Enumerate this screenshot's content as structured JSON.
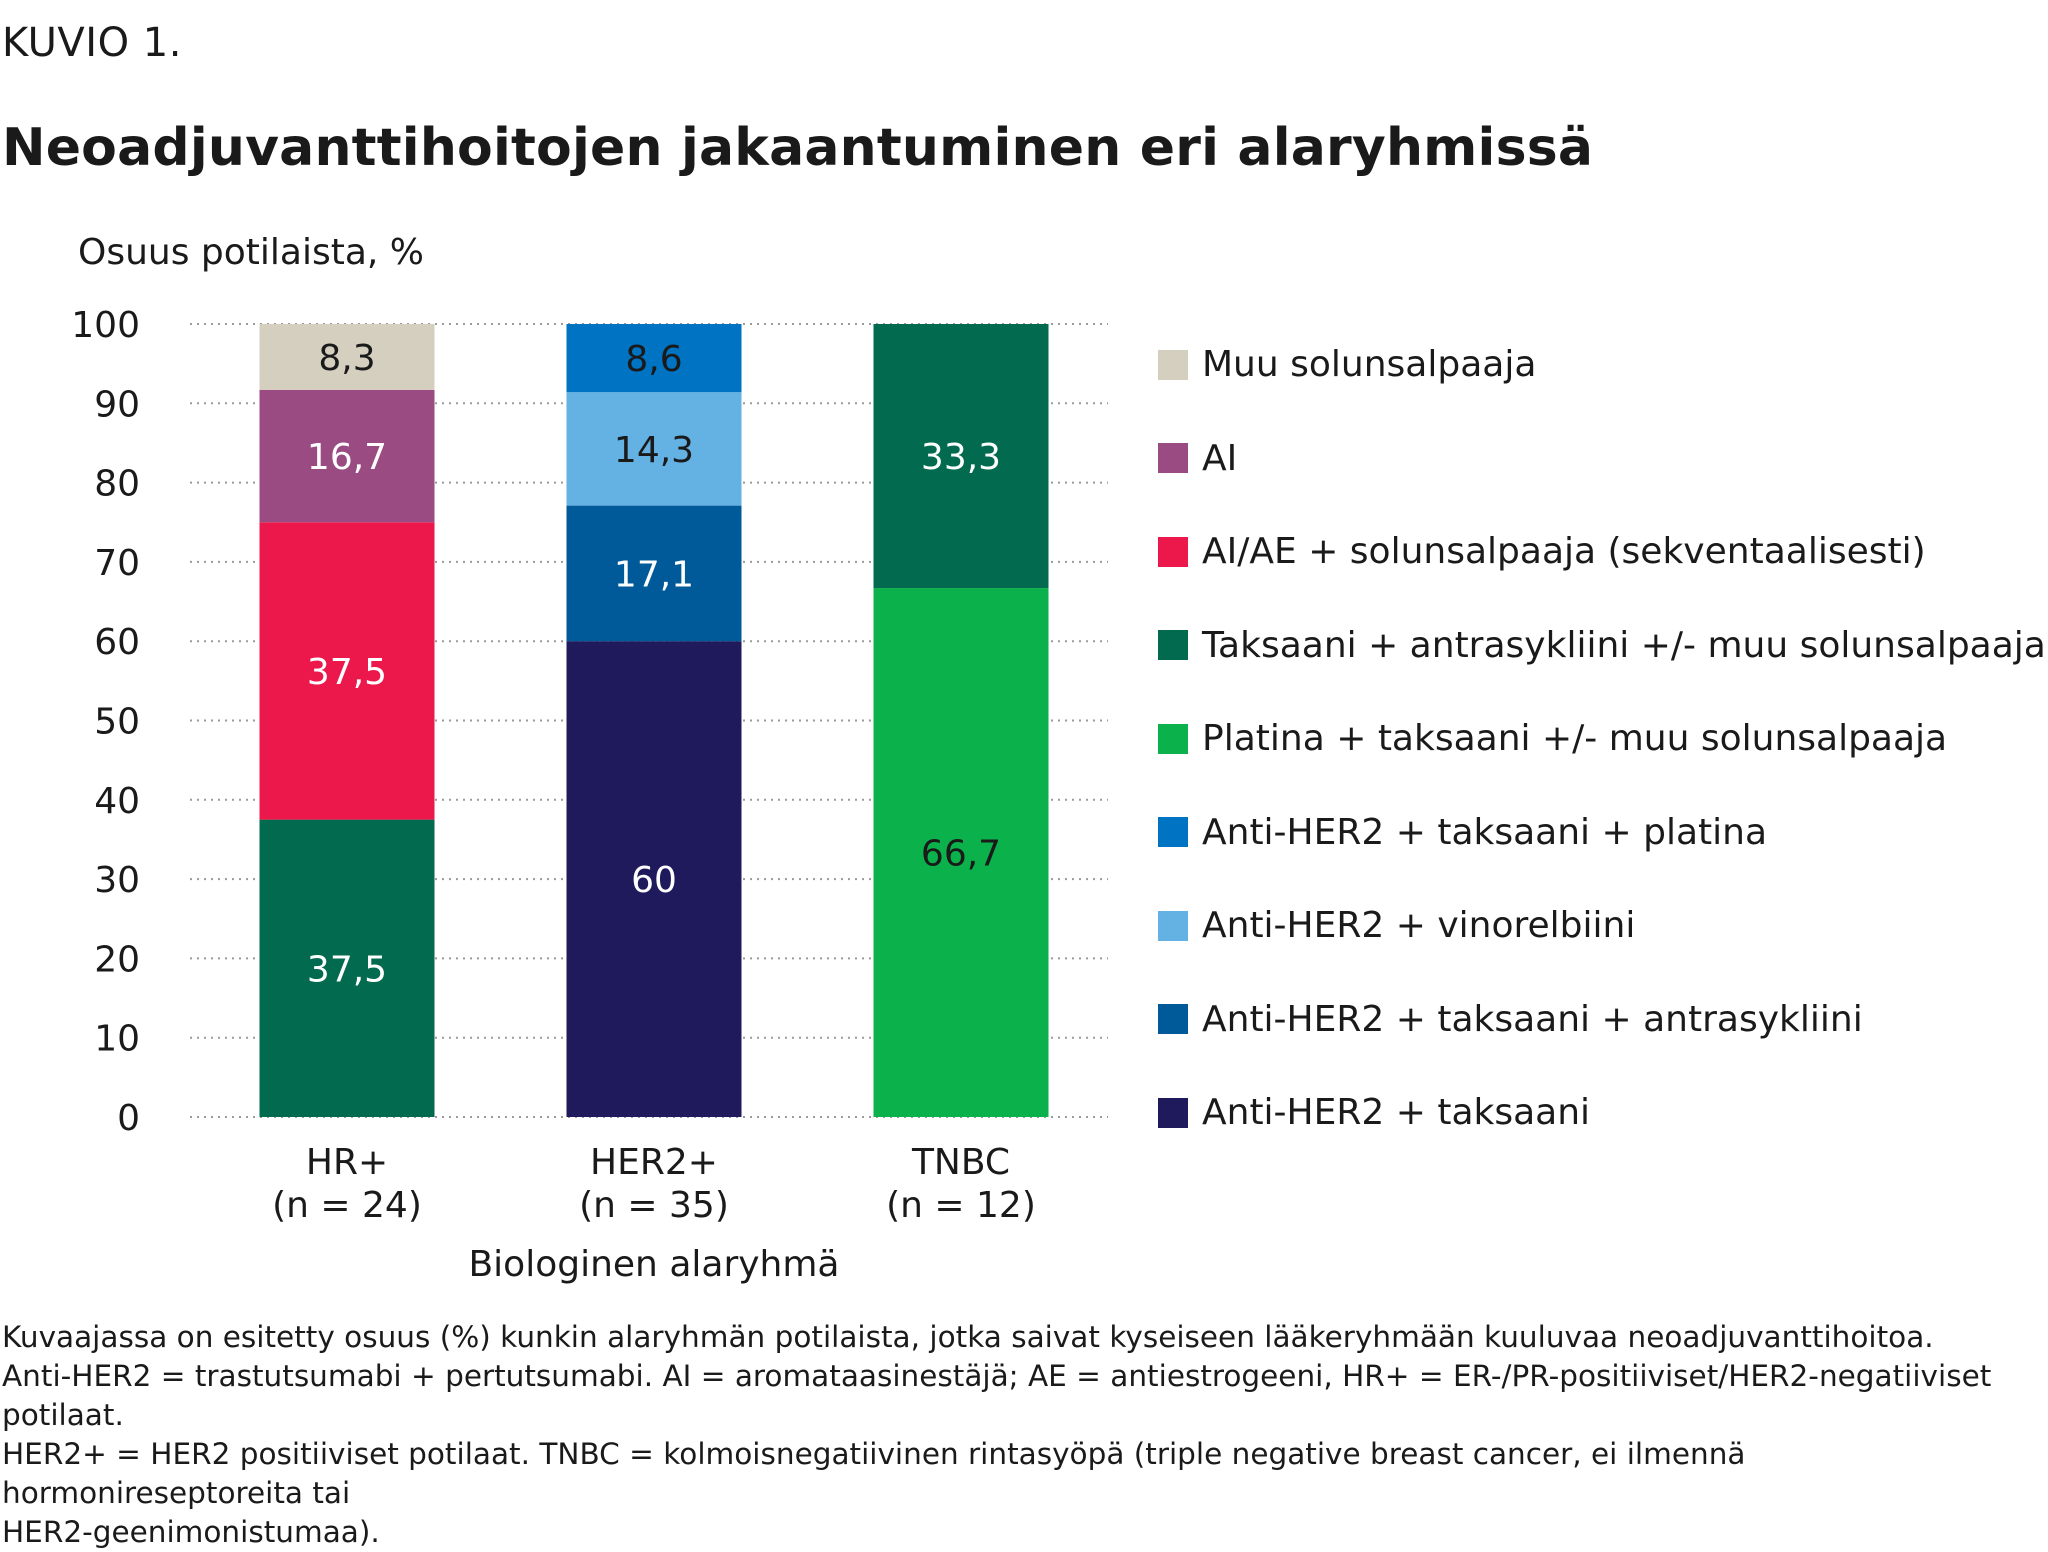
{
  "header": {
    "kuvio": "KUVIO 1.",
    "title": "Neoadjuvanttihoitojen jakaantuminen eri alaryhmissä"
  },
  "chart_data": {
    "type": "bar",
    "stacked": true,
    "title": "Neoadjuvanttihoitojen jakaantuminen eri alaryhmissä",
    "ylabel": "Osuus potilaista, %",
    "xlabel": "Biologinen alaryhmä",
    "ylim": [
      0,
      100
    ],
    "yticks": [
      "0",
      "10",
      "20",
      "30",
      "40",
      "50",
      "60",
      "70",
      "80",
      "90",
      "100"
    ],
    "grid": true,
    "legend_position": "right",
    "categories": [
      {
        "name": "HR+",
        "n": "(n = 24)"
      },
      {
        "name": "HER2+",
        "n": "(n = 35)"
      },
      {
        "name": "TNBC",
        "n": "(n = 12)"
      }
    ],
    "series": [
      {
        "name": "Anti-HER2 + taksaani",
        "color": "#1f1a5c",
        "values": [
          0,
          60,
          0
        ],
        "labels": [
          "",
          "60",
          ""
        ],
        "text_color": "#ffffff"
      },
      {
        "name": "Anti-HER2 + taksaani + antrasykliini",
        "color": "#005a99",
        "values": [
          0,
          17.1,
          0
        ],
        "labels": [
          "",
          "17,1",
          ""
        ],
        "text_color": "#ffffff"
      },
      {
        "name": "Anti-HER2 + vinorelbiini",
        "color": "#64b1e3",
        "values": [
          0,
          14.3,
          0
        ],
        "labels": [
          "",
          "14,3",
          ""
        ],
        "text_color": "#1a1a1a"
      },
      {
        "name": "Anti-HER2 + taksaani + platina",
        "color": "#0073c2",
        "values": [
          0,
          8.6,
          0
        ],
        "labels": [
          "",
          "8,6",
          ""
        ],
        "text_color": "#1a1a1a"
      },
      {
        "name": "Platina + taksaani +/- muu solunsalpaaja",
        "color": "#0bb14a",
        "values": [
          0,
          0,
          66.7
        ],
        "labels": [
          "",
          "",
          "66,7"
        ],
        "text_color": "#1a1a1a"
      },
      {
        "name": "Taksaani + antrasykliini +/- muu solunsalpaaja",
        "color": "#026a4f",
        "values": [
          37.5,
          0,
          33.3
        ],
        "labels": [
          "37,5",
          "",
          "33,3"
        ],
        "text_color": "#ffffff"
      },
      {
        "name": "AI/AE + solunsalpaaja (sekventaalisesti)",
        "color": "#ec184b",
        "values": [
          37.5,
          0,
          0
        ],
        "labels": [
          "37,5",
          "",
          ""
        ],
        "text_color": "#ffffff"
      },
      {
        "name": "AI",
        "color": "#9a4c82",
        "values": [
          16.7,
          0,
          0
        ],
        "labels": [
          "16,7",
          "",
          ""
        ],
        "text_color": "#ffffff"
      },
      {
        "name": "Muu solunsalpaaja",
        "color": "#d5cfbf",
        "values": [
          8.3,
          0,
          0
        ],
        "labels": [
          "8,3",
          "",
          ""
        ],
        "text_color": "#1a1a1a"
      }
    ],
    "legend_order": [
      "Muu solunsalpaaja",
      "AI",
      "AI/AE + solunsalpaaja (sekventaalisesti)",
      "Taksaani + antrasykliini +/- muu solunsalpaaja",
      "Platina + taksaani +/- muu solunsalpaaja",
      "Anti-HER2 + taksaani + platina",
      "Anti-HER2 + vinorelbiini",
      "Anti-HER2 + taksaani + antrasykliini",
      "Anti-HER2 + taksaani"
    ]
  },
  "footnote": [
    "Kuvaajassa on esitetty osuus (%) kunkin alaryhmän potilaista, jotka saivat kyseiseen lääkeryhmään kuuluvaa neoadjuvanttihoitoa.",
    "Anti-HER2 = trastutsumabi + pertutsumabi. AI = aromataasinestäjä; AE = antiestrogeeni, HR+ = ER-/PR-positiiviset/HER2-negatiiviset potilaat.",
    "HER2+ = HER2 positiiviset potilaat. TNBC = kolmoisnegatiivinen rintasyöpä (triple negative breast cancer, ei ilmennä hormonireseptoreita tai",
    "HER2-geenimonistumaa)."
  ]
}
